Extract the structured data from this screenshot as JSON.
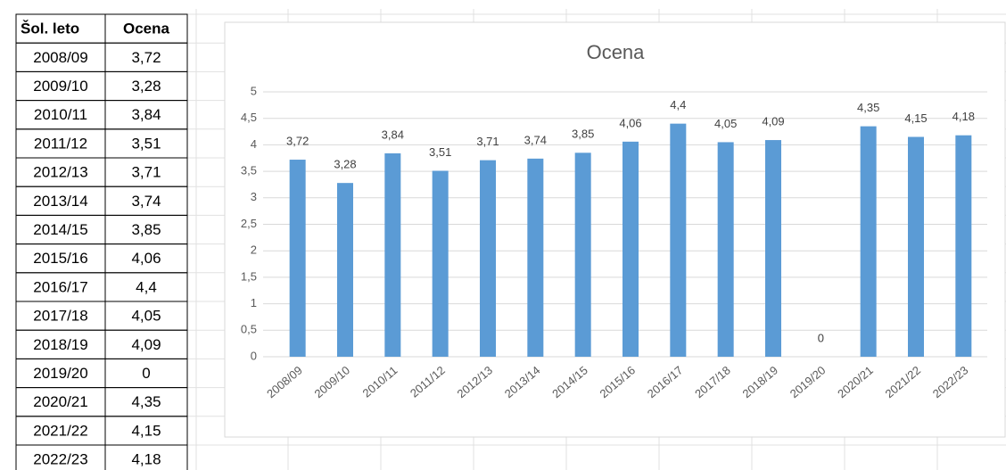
{
  "table": {
    "header": [
      "Šol. leto",
      "Ocena"
    ],
    "rows": [
      [
        "2008/09",
        "3,72"
      ],
      [
        "2009/10",
        "3,28"
      ],
      [
        "2010/11",
        "3,84"
      ],
      [
        "2011/12",
        "3,51"
      ],
      [
        "2012/13",
        "3,71"
      ],
      [
        "2013/14",
        "3,74"
      ],
      [
        "2014/15",
        "3,85"
      ],
      [
        "2015/16",
        "4,06"
      ],
      [
        "2016/17",
        "4,4"
      ],
      [
        "2017/18",
        "4,05"
      ],
      [
        "2018/19",
        "4,09"
      ],
      [
        "2019/20",
        "0"
      ],
      [
        "2020/21",
        "4,35"
      ],
      [
        "2021/22",
        "4,15"
      ],
      [
        "2022/23",
        "4,18"
      ]
    ]
  },
  "chart_data": {
    "type": "bar",
    "title": "Ocena",
    "categories": [
      "2008/09",
      "2009/10",
      "2010/11",
      "2011/12",
      "2012/13",
      "2013/14",
      "2014/15",
      "2015/16",
      "2016/17",
      "2017/18",
      "2018/19",
      "2019/20",
      "2020/21",
      "2021/22",
      "2022/23"
    ],
    "values": [
      3.72,
      3.28,
      3.84,
      3.51,
      3.71,
      3.74,
      3.85,
      4.06,
      4.4,
      4.05,
      4.09,
      0,
      4.35,
      4.15,
      4.18
    ],
    "value_labels": [
      "3,72",
      "3,28",
      "3,84",
      "3,51",
      "3,71",
      "3,74",
      "3,85",
      "4,06",
      "4,4",
      "4,05",
      "4,09",
      "0",
      "4,35",
      "4,15",
      "4,18"
    ],
    "color": "#5b9bd5",
    "ylim": [
      0,
      5
    ],
    "yticks": [
      0,
      {
        "value": 0.5,
        "label": "0,5"
      },
      1,
      {
        "value": 1.5,
        "label": "1,5"
      },
      2,
      {
        "value": 2.5,
        "label": "2,5"
      },
      3,
      {
        "value": 3.5,
        "label": "3,5"
      },
      4,
      {
        "value": 4.5,
        "label": "4,5"
      },
      5
    ],
    "grid": true
  }
}
